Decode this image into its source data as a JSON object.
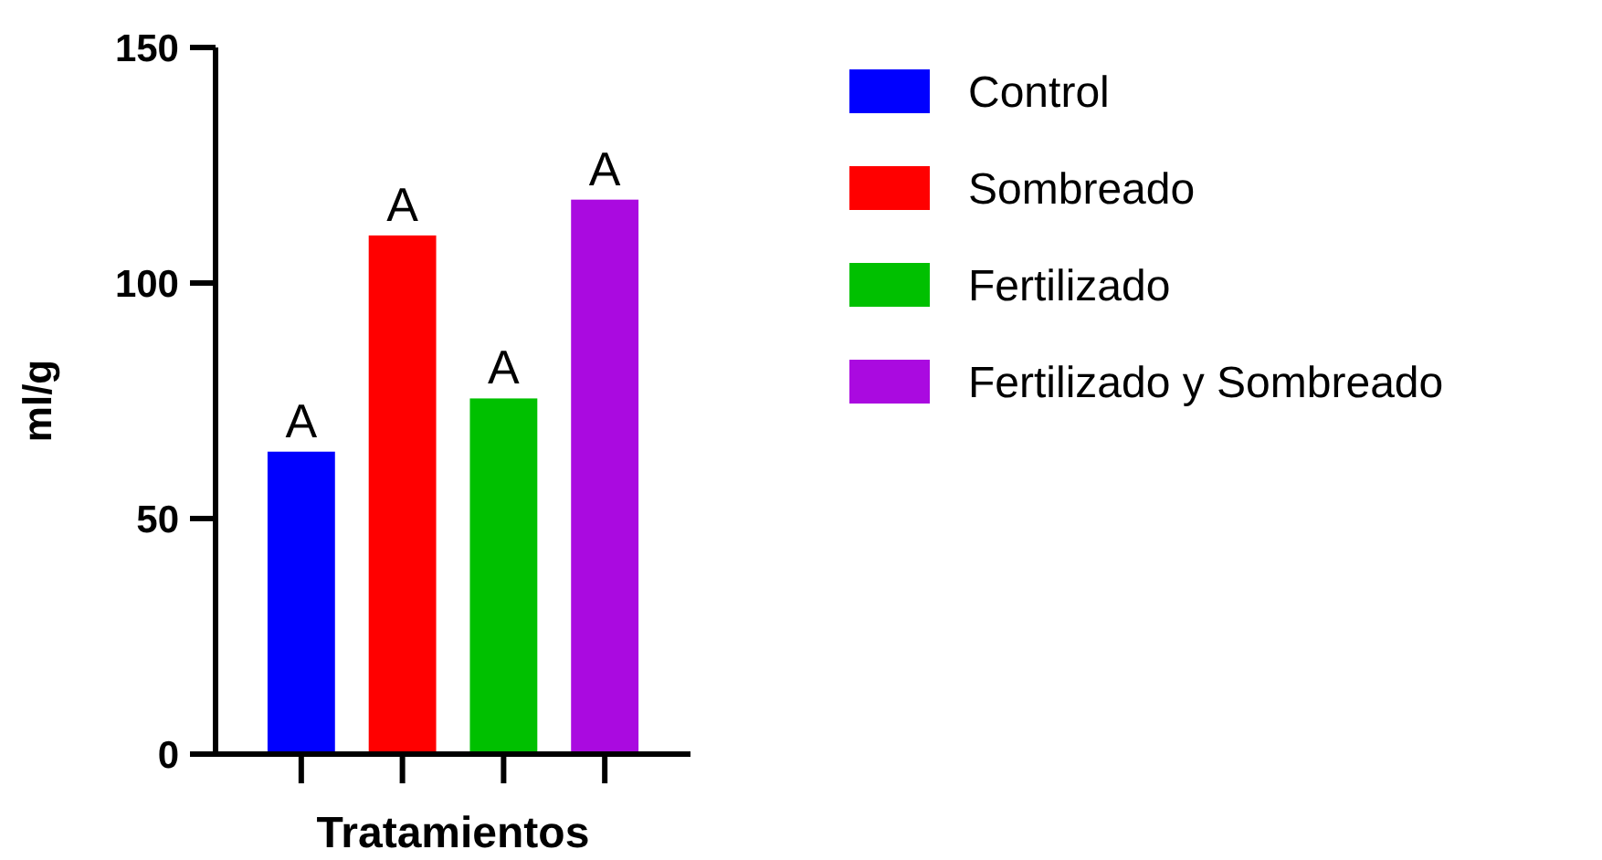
{
  "chart_data": {
    "type": "bar",
    "xlabel": "Tratamientos",
    "ylabel": "ml/g",
    "categories": [
      null,
      null,
      null,
      null
    ],
    "series": [
      {
        "name": "Control",
        "color": "#0000ff",
        "values": [
          64.2,
          null,
          null,
          null
        ]
      },
      {
        "name": "Sombreado",
        "color": "#ff0000",
        "values": [
          null,
          110.1,
          null,
          null
        ]
      },
      {
        "name": "Fertilizado",
        "color": "#00c000",
        "values": [
          null,
          null,
          75.5,
          null
        ]
      },
      {
        "name": "Fertilizado y Sombreado",
        "color": "#aa0ae0",
        "values": [
          null,
          null,
          null,
          117.7
        ]
      }
    ],
    "ylim": [
      0,
      150
    ],
    "yticks": [
      0,
      50,
      100,
      150
    ],
    "grid": false,
    "legend": "right",
    "annotations": [
      {
        "text": "A",
        "y": 64.2
      },
      {
        "text": "A",
        "y": 110.1
      },
      {
        "text": "A",
        "y": 75.5
      },
      {
        "text": "A",
        "y": 117.7
      }
    ]
  }
}
